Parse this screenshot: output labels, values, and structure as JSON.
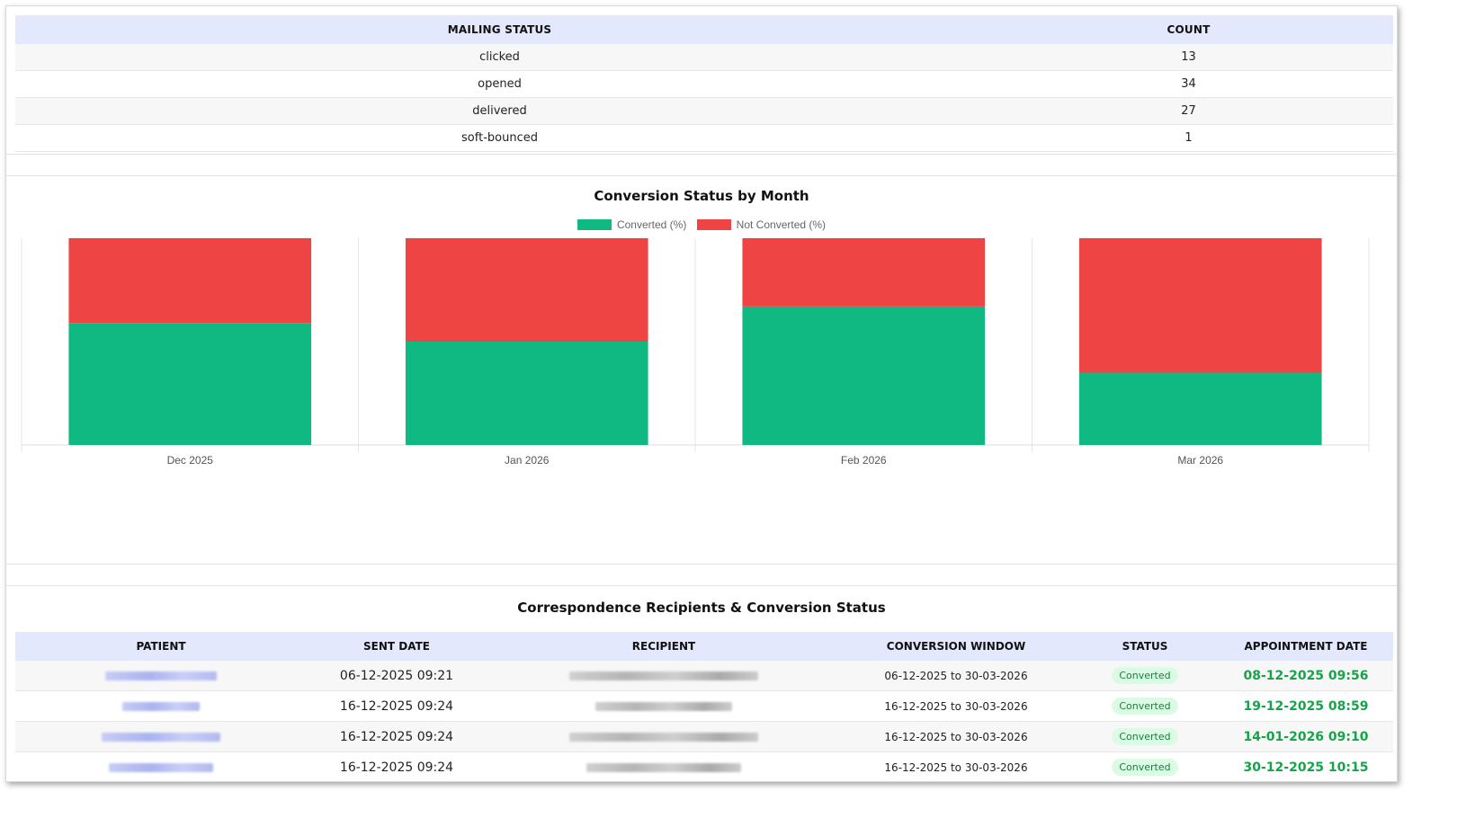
{
  "mailing_table": {
    "headers": [
      "MAILING STATUS",
      "COUNT"
    ],
    "rows": [
      {
        "status": "clicked",
        "count": "13"
      },
      {
        "status": "opened",
        "count": "34"
      },
      {
        "status": "delivered",
        "count": "27"
      },
      {
        "status": "soft-bounced",
        "count": "1"
      }
    ]
  },
  "chart_data": {
    "type": "bar",
    "stacked": true,
    "title": "Conversion Status by Month",
    "categories": [
      "Dec 2025",
      "Jan 2026",
      "Feb 2026",
      "Mar 2026"
    ],
    "series": [
      {
        "name": "Converted (%)",
        "color": "#10b981",
        "values": [
          59,
          50,
          67,
          35
        ]
      },
      {
        "name": "Not Converted (%)",
        "color": "#ef4444",
        "values": [
          41,
          50,
          33,
          65
        ]
      }
    ],
    "ylim": [
      0,
      100
    ],
    "legend": "top-center",
    "grid": "vertical"
  },
  "recipients": {
    "title": "Correspondence Recipients & Conversion Status",
    "headers": [
      "PATIENT",
      "SENT DATE",
      "RECIPIENT",
      "CONVERSION WINDOW",
      "STATUS",
      "APPOINTMENT DATE"
    ],
    "rows": [
      {
        "sent": "06-12-2025 09:21",
        "window": "06-12-2025 to 30-03-2026",
        "status": "Converted",
        "appointment": "08-12-2025 09:56"
      },
      {
        "sent": "16-12-2025 09:24",
        "window": "16-12-2025 to 30-03-2026",
        "status": "Converted",
        "appointment": "19-12-2025 08:59"
      },
      {
        "sent": "16-12-2025 09:24",
        "window": "16-12-2025 to 30-03-2026",
        "status": "Converted",
        "appointment": "14-01-2026 09:10"
      },
      {
        "sent": "16-12-2025 09:24",
        "window": "16-12-2025 to 30-03-2026",
        "status": "Converted",
        "appointment": "30-12-2025 10:15"
      }
    ]
  }
}
